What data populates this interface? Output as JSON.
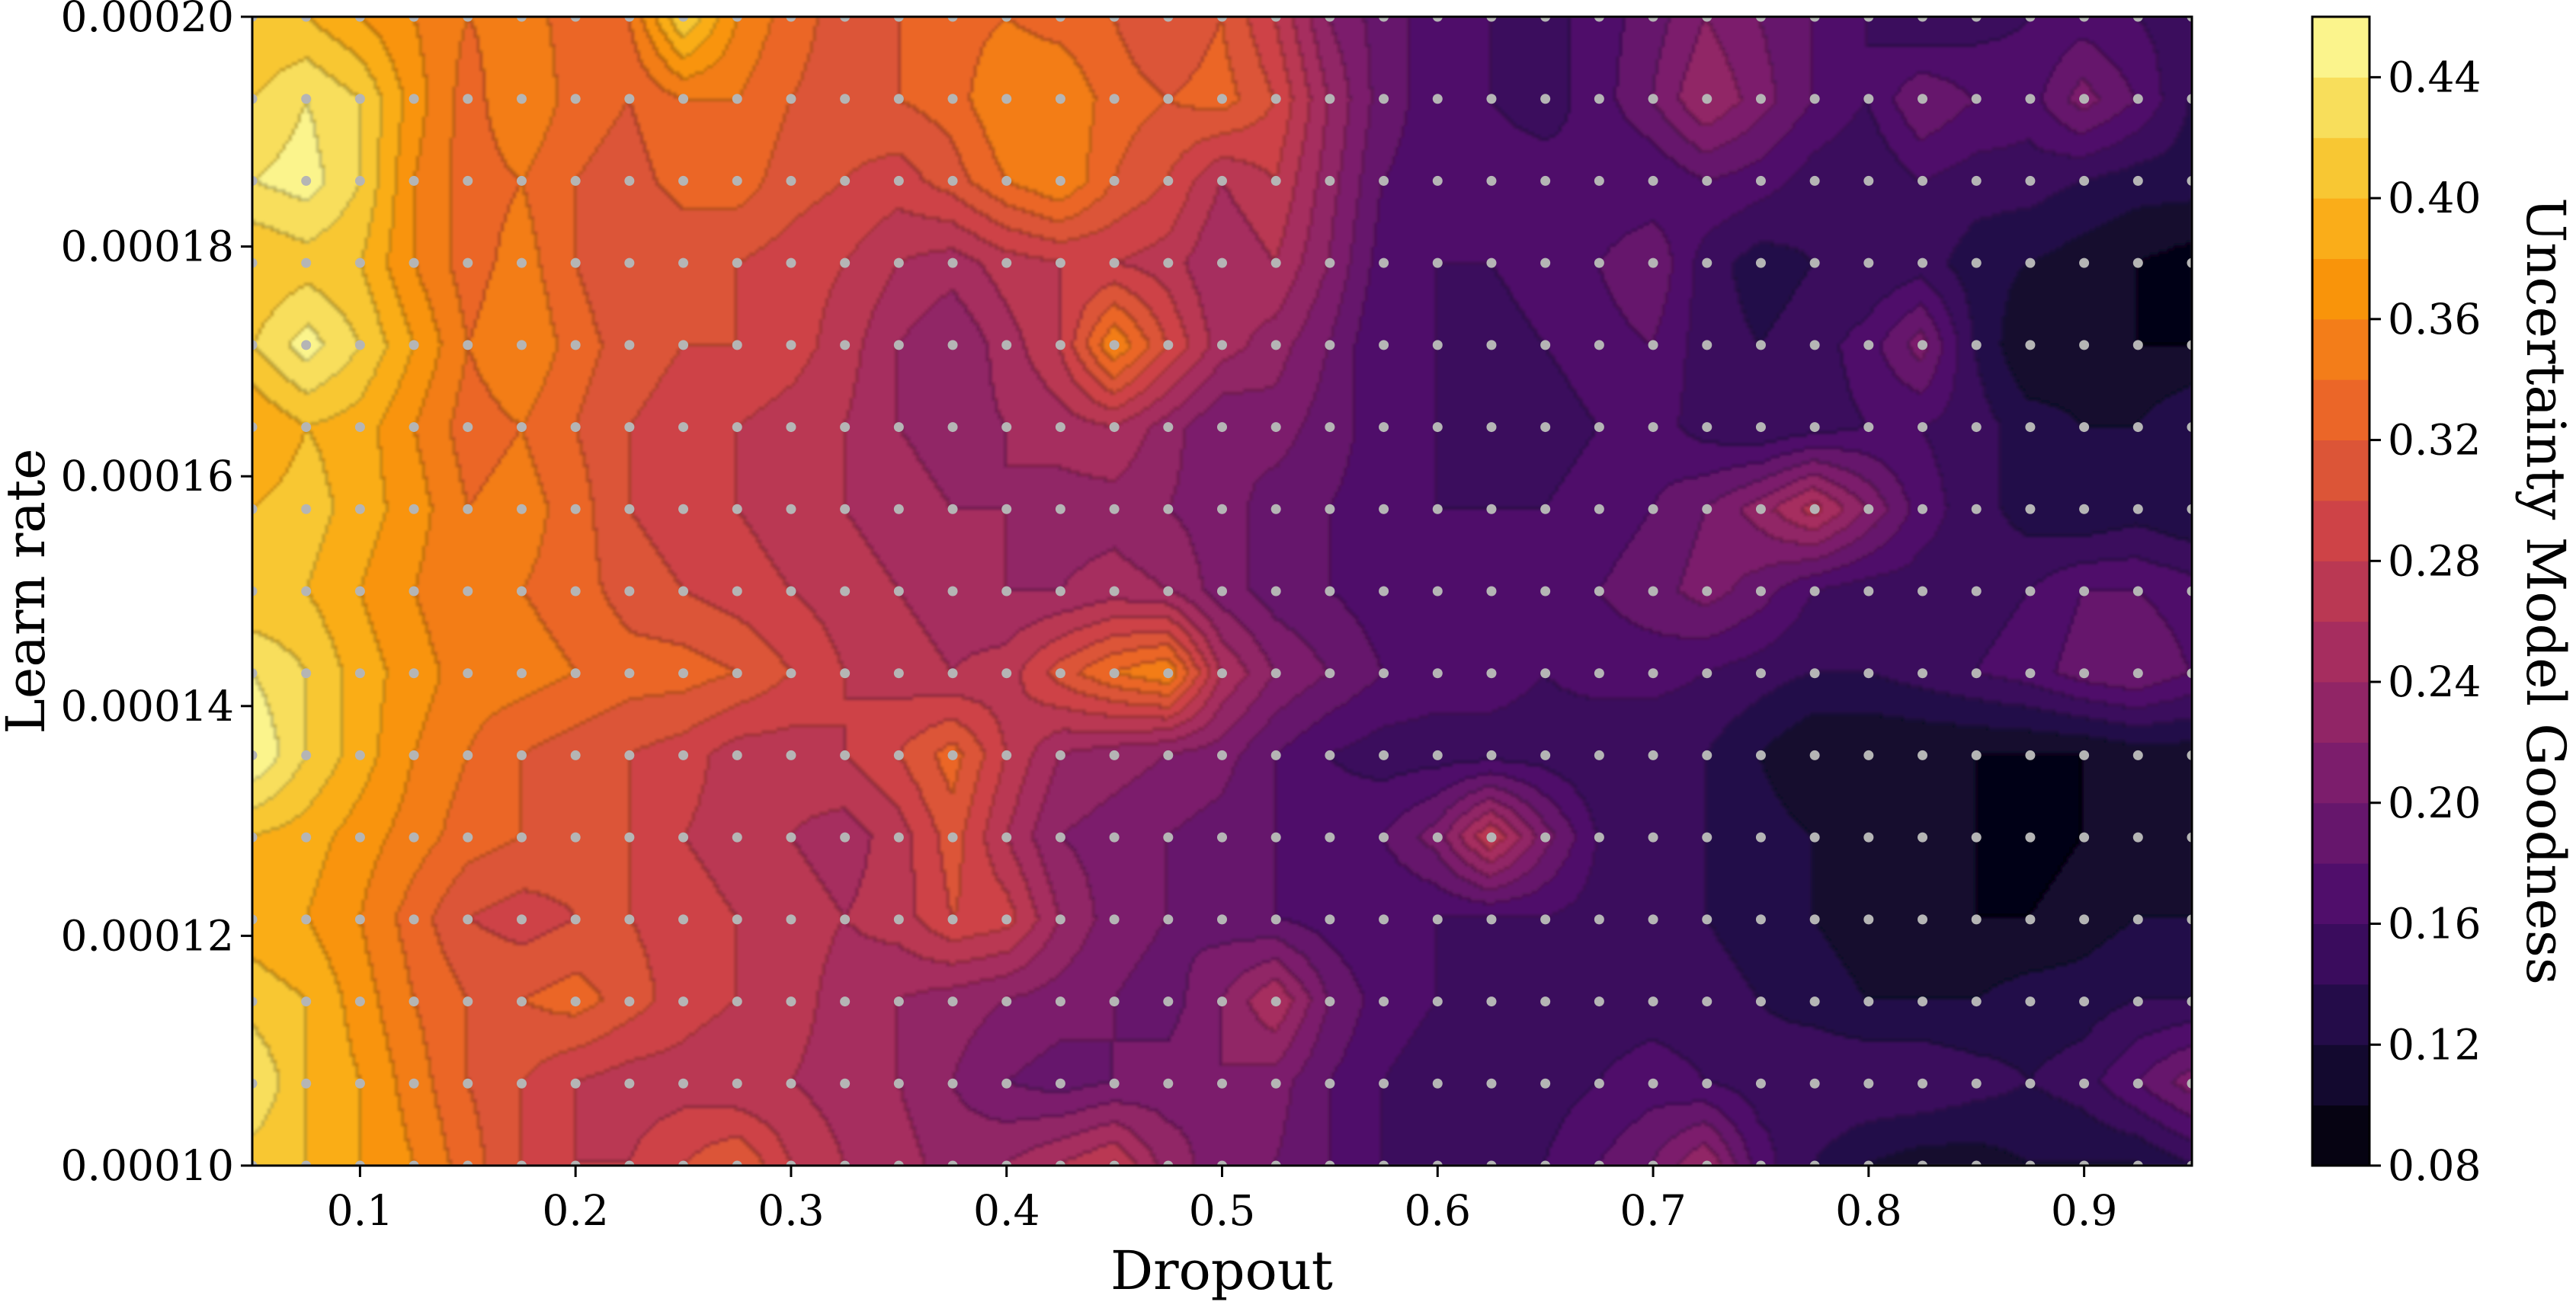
{
  "chart_data": {
    "type": "heatmap",
    "style": "filled-contour",
    "xlabel": "Dropout",
    "ylabel": "Learn rate",
    "colorbar_label": "Uncertainty Model Goodness",
    "xlim": [
      0.05,
      0.95
    ],
    "ylim": [
      0.0001,
      0.0002
    ],
    "x_ticks": [
      0.1,
      0.2,
      0.3,
      0.4,
      0.5,
      0.6,
      0.7,
      0.8,
      0.9
    ],
    "x_tick_labels": [
      "0.1",
      "0.2",
      "0.3",
      "0.4",
      "0.5",
      "0.6",
      "0.7",
      "0.8",
      "0.9"
    ],
    "y_ticks": [
      0.0001,
      0.00012,
      0.00014,
      0.00016,
      0.00018,
      0.0002
    ],
    "y_tick_labels": [
      "0.00010",
      "0.00012",
      "0.00014",
      "0.00016",
      "0.00018",
      "0.00020"
    ],
    "colorbar_range": [
      0.08,
      0.46
    ],
    "colorbar_ticks": [
      0.08,
      0.12,
      0.16,
      0.2,
      0.24,
      0.28,
      0.32,
      0.36,
      0.4,
      0.44
    ],
    "colorbar_tick_labels": [
      "0.08",
      "0.12",
      "0.16",
      "0.20",
      "0.24",
      "0.28",
      "0.32",
      "0.36",
      "0.40",
      "0.44"
    ],
    "colormap": "inferno",
    "colormap_stops": [
      "#000004",
      "#1b0c41",
      "#4a0c6b",
      "#781c6d",
      "#a52c60",
      "#cf4446",
      "#ed6925",
      "#fb9b06",
      "#f7d13d",
      "#fcffa4"
    ],
    "sample_point_color": "#b5b5b5",
    "sample_x": [
      0.05,
      0.075,
      0.1,
      0.125,
      0.15,
      0.175,
      0.2,
      0.225,
      0.25,
      0.275,
      0.3,
      0.325,
      0.35,
      0.375,
      0.4,
      0.425,
      0.45,
      0.475,
      0.5,
      0.525,
      0.55,
      0.575,
      0.6,
      0.625,
      0.65,
      0.675,
      0.7,
      0.725,
      0.75,
      0.775,
      0.8,
      0.825,
      0.85,
      0.875,
      0.9,
      0.925,
      0.95
    ],
    "sample_y": [
      0.0001,
      0.000107143,
      0.000114286,
      0.000121429,
      0.000128571,
      0.000135714,
      0.000142857,
      0.00015,
      0.000157143,
      0.000164286,
      0.000171429,
      0.000178571,
      0.000185714,
      0.000192857,
      0.0002
    ],
    "z_grid_note": "rows ordered from y=0.00020 (top) to y=0.00010 (bottom); columns follow sample_x",
    "z": [
      [
        0.4,
        0.4,
        0.38,
        0.36,
        0.34,
        0.35,
        0.33,
        0.34,
        0.42,
        0.36,
        0.33,
        0.31,
        0.32,
        0.33,
        0.34,
        0.33,
        0.32,
        0.3,
        0.32,
        0.28,
        0.22,
        0.19,
        0.17,
        0.16,
        0.15,
        0.17,
        0.19,
        0.22,
        0.2,
        0.18,
        0.16,
        0.14,
        0.15,
        0.16,
        0.17,
        0.16,
        0.15
      ],
      [
        0.42,
        0.44,
        0.42,
        0.37,
        0.33,
        0.36,
        0.33,
        0.32,
        0.34,
        0.34,
        0.32,
        0.31,
        0.32,
        0.33,
        0.36,
        0.36,
        0.33,
        0.32,
        0.33,
        0.3,
        0.24,
        0.19,
        0.17,
        0.16,
        0.15,
        0.17,
        0.2,
        0.24,
        0.21,
        0.18,
        0.16,
        0.2,
        0.18,
        0.17,
        0.21,
        0.18,
        0.14
      ],
      [
        0.44,
        0.45,
        0.42,
        0.36,
        0.33,
        0.34,
        0.32,
        0.31,
        0.33,
        0.33,
        0.31,
        0.3,
        0.29,
        0.31,
        0.34,
        0.36,
        0.32,
        0.3,
        0.26,
        0.28,
        0.23,
        0.18,
        0.17,
        0.17,
        0.17,
        0.16,
        0.16,
        0.18,
        0.17,
        0.15,
        0.14,
        0.16,
        0.15,
        0.15,
        0.14,
        0.13,
        0.13
      ],
      [
        0.4,
        0.41,
        0.4,
        0.36,
        0.33,
        0.35,
        0.32,
        0.3,
        0.3,
        0.3,
        0.29,
        0.28,
        0.26,
        0.25,
        0.27,
        0.28,
        0.28,
        0.27,
        0.24,
        0.26,
        0.22,
        0.17,
        0.16,
        0.16,
        0.17,
        0.18,
        0.2,
        0.15,
        0.13,
        0.14,
        0.14,
        0.15,
        0.13,
        0.12,
        0.11,
        0.1,
        0.09
      ],
      [
        0.42,
        0.45,
        0.42,
        0.38,
        0.34,
        0.36,
        0.33,
        0.31,
        0.3,
        0.3,
        0.29,
        0.27,
        0.24,
        0.22,
        0.25,
        0.28,
        0.36,
        0.3,
        0.25,
        0.23,
        0.2,
        0.16,
        0.16,
        0.15,
        0.16,
        0.17,
        0.18,
        0.15,
        0.14,
        0.15,
        0.17,
        0.21,
        0.14,
        0.1,
        0.11,
        0.1,
        0.1
      ],
      [
        0.38,
        0.4,
        0.39,
        0.36,
        0.33,
        0.34,
        0.32,
        0.3,
        0.29,
        0.28,
        0.27,
        0.26,
        0.24,
        0.23,
        0.24,
        0.25,
        0.26,
        0.23,
        0.2,
        0.21,
        0.19,
        0.17,
        0.16,
        0.15,
        0.15,
        0.16,
        0.17,
        0.15,
        0.14,
        0.15,
        0.16,
        0.16,
        0.15,
        0.13,
        0.12,
        0.12,
        0.14
      ],
      [
        0.4,
        0.41,
        0.39,
        0.37,
        0.34,
        0.35,
        0.33,
        0.3,
        0.29,
        0.28,
        0.27,
        0.26,
        0.25,
        0.24,
        0.24,
        0.23,
        0.23,
        0.22,
        0.21,
        0.19,
        0.18,
        0.17,
        0.16,
        0.16,
        0.16,
        0.17,
        0.18,
        0.2,
        0.23,
        0.27,
        0.22,
        0.17,
        0.15,
        0.13,
        0.12,
        0.13,
        0.12
      ],
      [
        0.4,
        0.4,
        0.38,
        0.36,
        0.34,
        0.34,
        0.33,
        0.31,
        0.3,
        0.29,
        0.28,
        0.27,
        0.26,
        0.25,
        0.24,
        0.24,
        0.25,
        0.24,
        0.21,
        0.19,
        0.18,
        0.17,
        0.17,
        0.17,
        0.17,
        0.18,
        0.19,
        0.21,
        0.19,
        0.16,
        0.15,
        0.15,
        0.15,
        0.16,
        0.18,
        0.18,
        0.17
      ],
      [
        0.44,
        0.42,
        0.39,
        0.37,
        0.35,
        0.35,
        0.34,
        0.33,
        0.33,
        0.32,
        0.3,
        0.28,
        0.27,
        0.26,
        0.27,
        0.31,
        0.34,
        0.36,
        0.26,
        0.22,
        0.2,
        0.18,
        0.17,
        0.17,
        0.16,
        0.17,
        0.17,
        0.16,
        0.15,
        0.14,
        0.14,
        0.15,
        0.16,
        0.17,
        0.19,
        0.2,
        0.18
      ],
      [
        0.46,
        0.42,
        0.39,
        0.36,
        0.34,
        0.32,
        0.31,
        0.3,
        0.29,
        0.27,
        0.27,
        0.28,
        0.3,
        0.33,
        0.28,
        0.24,
        0.23,
        0.22,
        0.21,
        0.18,
        0.16,
        0.15,
        0.15,
        0.15,
        0.15,
        0.14,
        0.14,
        0.14,
        0.12,
        0.1,
        0.1,
        0.1,
        0.1,
        0.1,
        0.1,
        0.11,
        0.11
      ],
      [
        0.4,
        0.39,
        0.37,
        0.35,
        0.33,
        0.32,
        0.31,
        0.3,
        0.28,
        0.27,
        0.26,
        0.25,
        0.27,
        0.31,
        0.26,
        0.22,
        0.21,
        0.2,
        0.19,
        0.18,
        0.17,
        0.18,
        0.21,
        0.28,
        0.21,
        0.16,
        0.15,
        0.14,
        0.13,
        0.12,
        0.11,
        0.1,
        0.1,
        0.09,
        0.1,
        0.11,
        0.11
      ],
      [
        0.39,
        0.38,
        0.36,
        0.33,
        0.3,
        0.29,
        0.3,
        0.3,
        0.29,
        0.28,
        0.27,
        0.26,
        0.27,
        0.3,
        0.29,
        0.24,
        0.21,
        0.2,
        0.19,
        0.18,
        0.17,
        0.16,
        0.16,
        0.16,
        0.16,
        0.15,
        0.14,
        0.14,
        0.13,
        0.12,
        0.11,
        0.1,
        0.1,
        0.1,
        0.11,
        0.12,
        0.12
      ],
      [
        0.41,
        0.4,
        0.37,
        0.34,
        0.32,
        0.32,
        0.33,
        0.31,
        0.29,
        0.28,
        0.27,
        0.25,
        0.24,
        0.23,
        0.22,
        0.21,
        0.2,
        0.19,
        0.22,
        0.26,
        0.2,
        0.17,
        0.16,
        0.15,
        0.15,
        0.15,
        0.15,
        0.15,
        0.14,
        0.13,
        0.12,
        0.12,
        0.12,
        0.13,
        0.13,
        0.14,
        0.14
      ],
      [
        0.44,
        0.4,
        0.38,
        0.35,
        0.32,
        0.3,
        0.28,
        0.27,
        0.27,
        0.26,
        0.26,
        0.25,
        0.24,
        0.22,
        0.2,
        0.19,
        0.2,
        0.21,
        0.22,
        0.21,
        0.18,
        0.16,
        0.15,
        0.15,
        0.15,
        0.16,
        0.17,
        0.16,
        0.15,
        0.16,
        0.16,
        0.16,
        0.15,
        0.14,
        0.15,
        0.18,
        0.21
      ],
      [
        0.41,
        0.4,
        0.38,
        0.36,
        0.33,
        0.3,
        0.28,
        0.28,
        0.3,
        0.32,
        0.28,
        0.26,
        0.25,
        0.23,
        0.24,
        0.26,
        0.28,
        0.23,
        0.21,
        0.2,
        0.18,
        0.16,
        0.15,
        0.15,
        0.16,
        0.18,
        0.2,
        0.24,
        0.17,
        0.14,
        0.12,
        0.11,
        0.11,
        0.12,
        0.12,
        0.12,
        0.14
      ]
    ]
  }
}
